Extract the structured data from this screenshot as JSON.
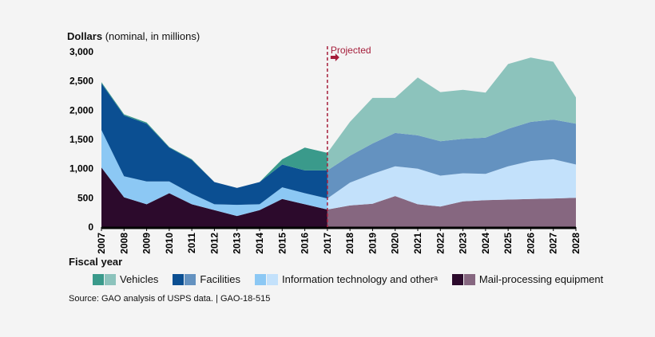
{
  "axis_title": {
    "bold": "Dollars",
    "rest": " (nominal, in millions)"
  },
  "xlabel": "Fiscal year",
  "source": "Source: GAO analysis of USPS data.  |  GAO-18-515",
  "projected_label": "Projected",
  "colors": {
    "vehicles_actual": "#3a9a8b",
    "vehicles_projected": "#8cc3bc",
    "facilities_actual": "#0b4f92",
    "facilities_projected": "#6492c0",
    "it_actual": "#8cc8f4",
    "it_projected": "#c3e1fb",
    "mail_actual": "#2c0a2c",
    "mail_projected": "#866780",
    "divider": "#a51d3a"
  },
  "legend": [
    {
      "label": "Vehicles",
      "actual": "#3a9a8b",
      "projected": "#8cc3bc"
    },
    {
      "label": "Facilities",
      "actual": "#0b4f92",
      "projected": "#6492c0"
    },
    {
      "label": "Information technology and otherᵃ",
      "actual": "#8cc8f4",
      "projected": "#c3e1fb"
    },
    {
      "label": "Mail-processing equipment",
      "actual": "#2c0a2c",
      "projected": "#866780"
    }
  ],
  "chart_data": {
    "type": "area",
    "stacked": true,
    "x": [
      "2007",
      "2008",
      "2009",
      "2010",
      "2011",
      "2012",
      "2013",
      "2014",
      "2015",
      "2016",
      "2017",
      "2018",
      "2019",
      "2020",
      "2021",
      "2022",
      "2023",
      "2024",
      "2025",
      "2026",
      "2027",
      "2028"
    ],
    "projected_from": "2017",
    "ylim": [
      0,
      3000
    ],
    "yticks": [
      "0",
      "500",
      "1,000",
      "1,500",
      "2,000",
      "2,500",
      "3,000"
    ],
    "series": [
      {
        "name": "Mail-processing equipment",
        "values": [
          1020,
          510,
          390,
          580,
          390,
          290,
          190,
          290,
          480,
          390,
          300,
          370,
          400,
          530,
          390,
          350,
          440,
          460,
          470,
          480,
          490,
          500
        ]
      },
      {
        "name": "Information technology and otherᵃ",
        "values": [
          640,
          360,
          390,
          200,
          180,
          100,
          190,
          100,
          200,
          190,
          190,
          390,
          510,
          510,
          610,
          530,
          480,
          450,
          570,
          650,
          670,
          570
        ]
      },
      {
        "name": "Facilities",
        "values": [
          800,
          1040,
          990,
          580,
          580,
          380,
          290,
          380,
          390,
          390,
          480,
          460,
          520,
          570,
          570,
          590,
          590,
          620,
          640,
          670,
          680,
          700
        ]
      },
      {
        "name": "Vehicles",
        "values": [
          20,
          20,
          20,
          10,
          10,
          0,
          0,
          0,
          90,
          390,
          300,
          580,
          780,
          600,
          990,
          840,
          840,
          770,
          1110,
          1100,
          990,
          450
        ]
      }
    ]
  }
}
